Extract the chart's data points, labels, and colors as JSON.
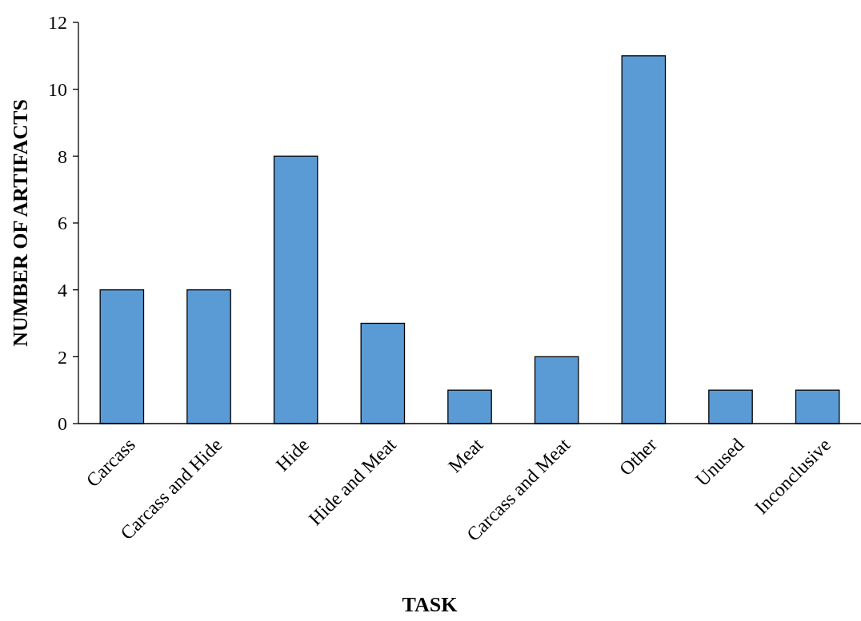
{
  "chart_data": {
    "type": "bar",
    "xlabel": "TASK",
    "ylabel": "NUMBER OF ARTIFACTS",
    "categories": [
      "Carcass",
      "Carcass and Hide",
      "Hide",
      "Hide and Meat",
      "Meat",
      "Carcass and Meat",
      "Other",
      "Unused",
      "Inconclusive"
    ],
    "values": [
      4,
      4,
      8,
      3,
      1,
      2,
      11,
      1,
      1
    ],
    "color": "#5b9bd5",
    "ylim": [
      0,
      12
    ],
    "yticks": [
      0,
      2,
      4,
      6,
      8,
      10,
      12
    ],
    "grid": false
  }
}
